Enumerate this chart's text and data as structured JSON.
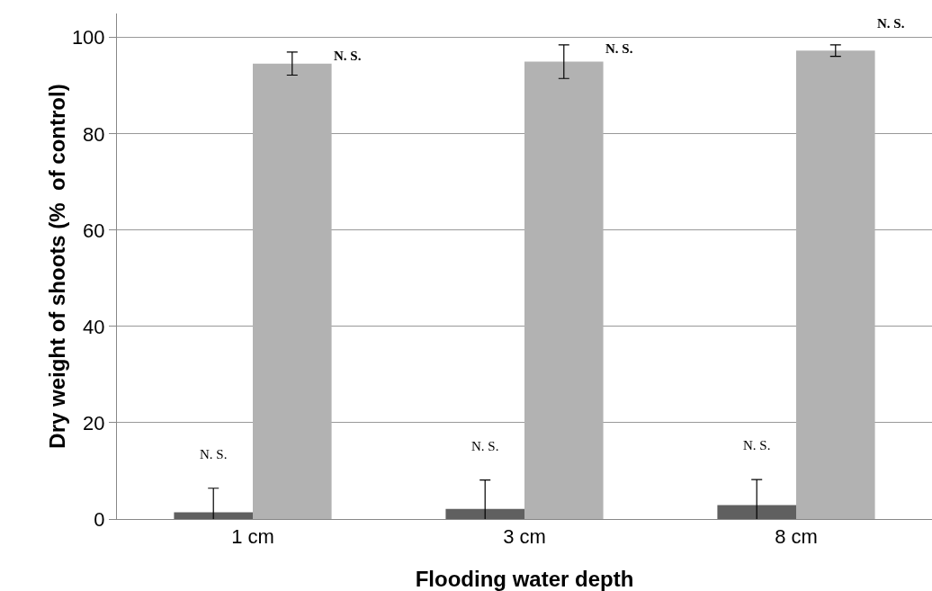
{
  "chart_data": {
    "type": "bar",
    "xlabel": "Flooding water depth",
    "ylabel": "Dry weight of shoots (%  of control)",
    "categories": [
      "1 cm",
      "3 cm",
      "8 cm"
    ],
    "series": [
      {
        "color": "#606060",
        "values": [
          1.4,
          2.1,
          2.9
        ],
        "errors": [
          5,
          6,
          5.3
        ]
      },
      {
        "color": "#b2b2b2",
        "values": [
          94.6,
          95,
          97.3
        ],
        "errors": [
          2.4,
          3.5,
          1.2
        ]
      }
    ],
    "ylim": [
      0,
      105
    ],
    "yticks": [
      0,
      20,
      40,
      60,
      80,
      100
    ],
    "grid": "y",
    "annotations": [
      "N. S.",
      "N. S.",
      "N. S.",
      "N. S.",
      "N. S.",
      "N. S."
    ]
  }
}
